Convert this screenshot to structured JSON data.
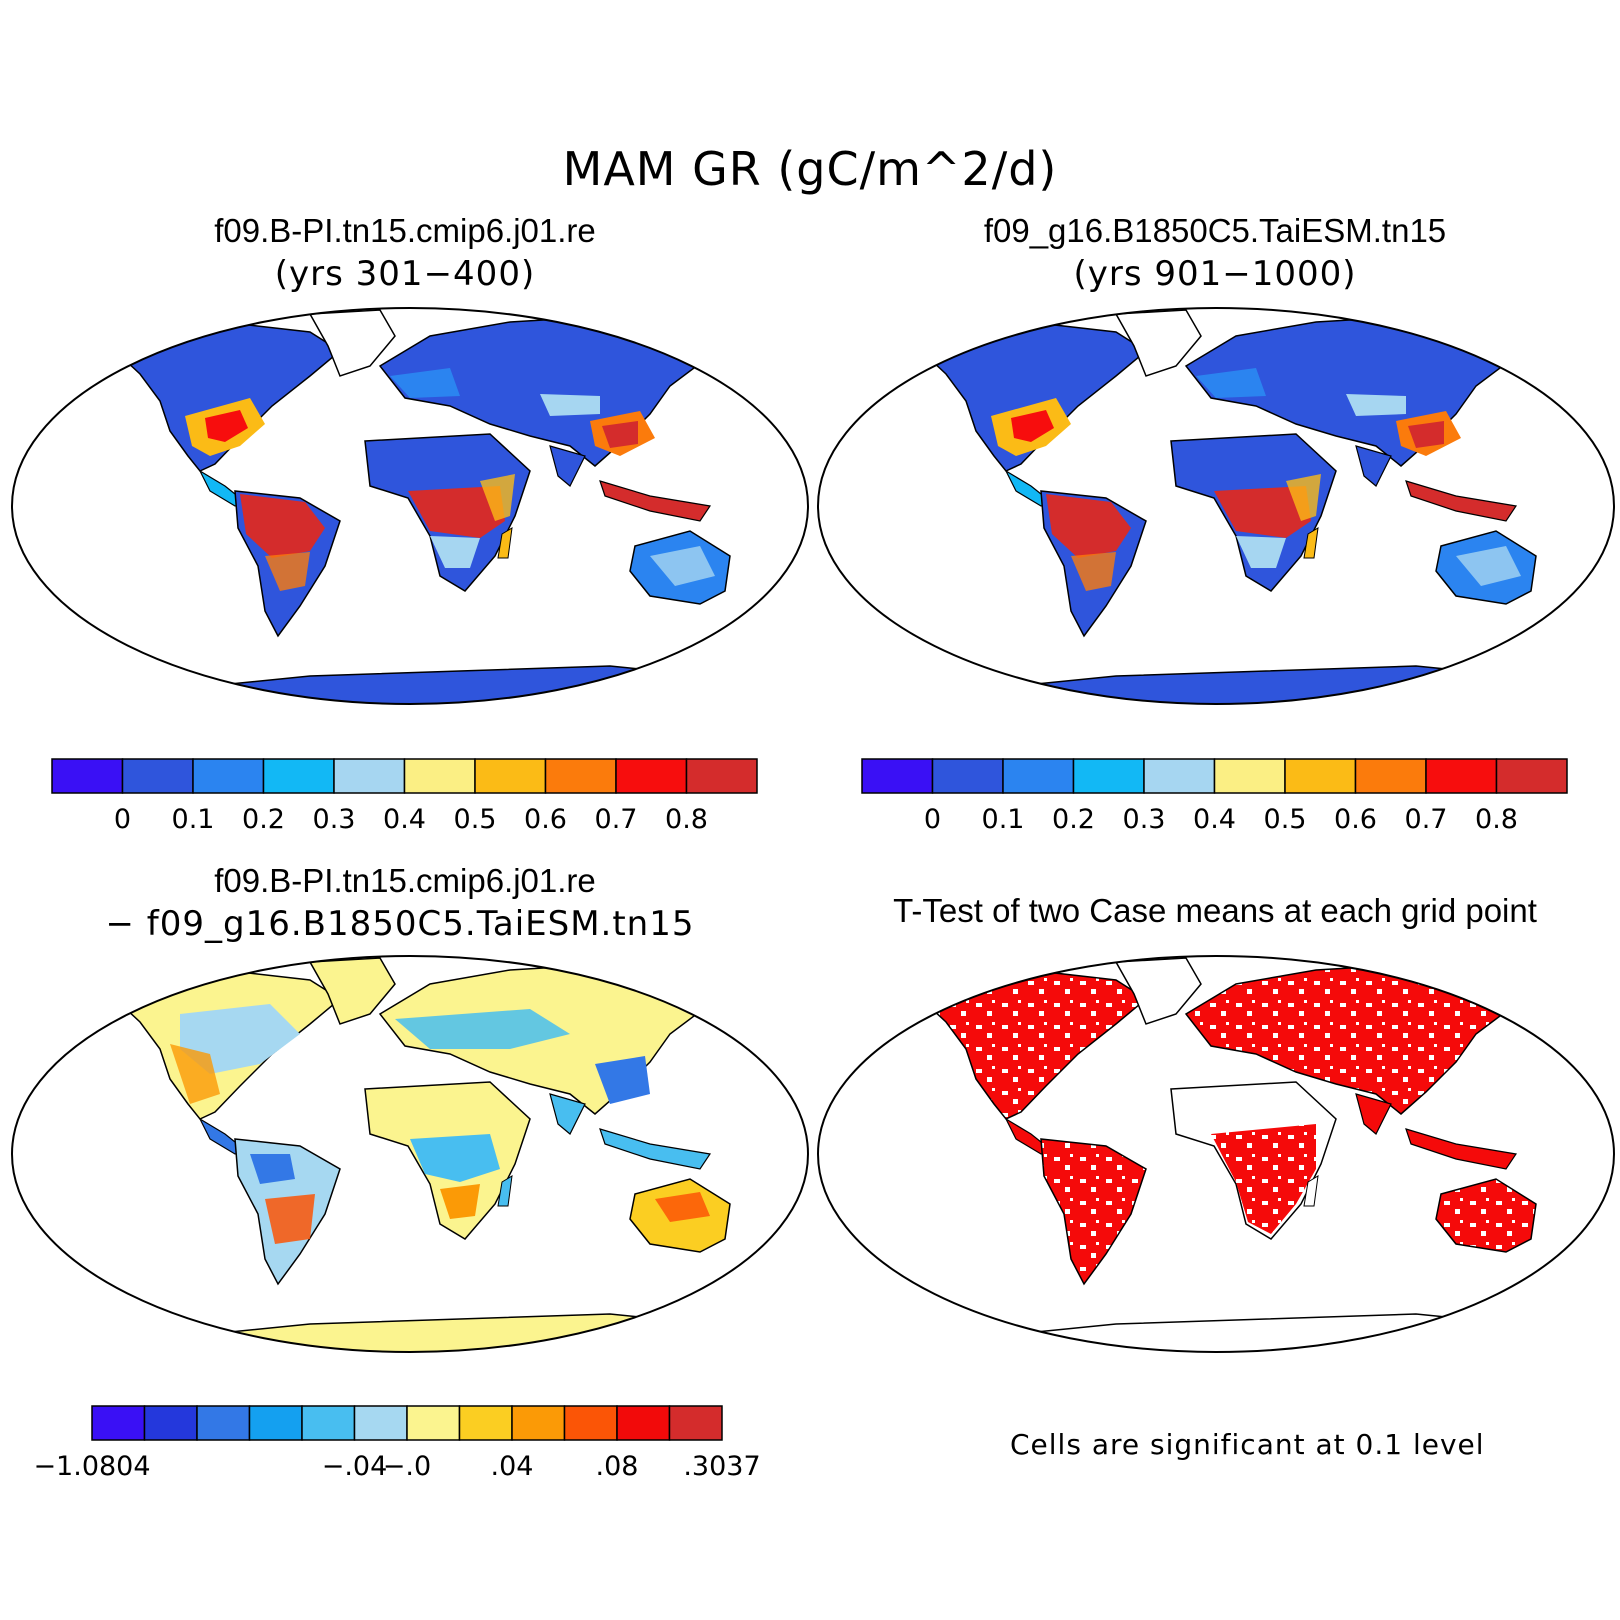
{
  "figure": {
    "title": "MAM GR (gC/m^2/d)"
  },
  "panels": {
    "case1": {
      "title": "f09.B-PI.tn15.cmip6.j01.re",
      "subtitle": "(yrs 301−400)"
    },
    "case2": {
      "title": "f09_g16.B1850C5.TaiESM.tn15",
      "subtitle": "(yrs 901−1000)"
    },
    "diff": {
      "title": "f09.B-PI.tn15.cmip6.j01.re",
      "subtitle": "− f09_g16.B1850C5.TaiESM.tn15"
    },
    "ttest": {
      "title": "T-Test of two Case means at each grid point",
      "note": "Cells are significant at 0.1 level"
    }
  },
  "colorbars": {
    "mean": {
      "colors": [
        "#3a10f5",
        "#2f55dc",
        "#2b84f0",
        "#12b8f5",
        "#a6d6f1",
        "#fbef84",
        "#fbbb16",
        "#fb7b0c",
        "#f70d0d",
        "#d42c2c"
      ],
      "labels": [
        "0",
        "0.1",
        "0.2",
        "0.3",
        "0.4",
        "0.5",
        "0.6",
        "0.7",
        "0.8"
      ]
    },
    "diff": {
      "colors": [
        "#3a10f5",
        "#2438dc",
        "#3378e6",
        "#14a0f0",
        "#48bef0",
        "#a6d8f1",
        "#fbf48f",
        "#fbce22",
        "#fb9a06",
        "#fb5506",
        "#f20a0a",
        "#d42c2c"
      ],
      "labels": [
        "−1.0804",
        "−.04",
        "−.0",
        ".04",
        ".08",
        ".3037"
      ]
    }
  }
}
